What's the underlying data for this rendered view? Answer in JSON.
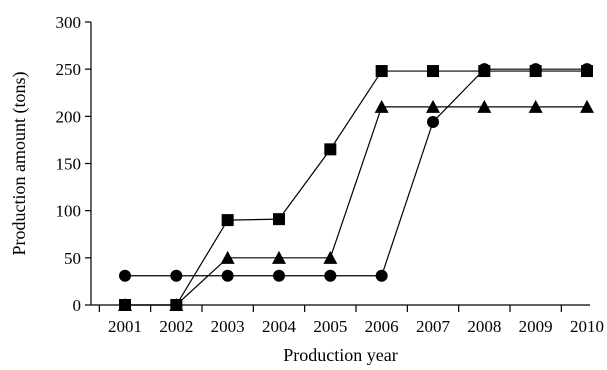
{
  "chart_data": {
    "type": "line",
    "title": "",
    "xlabel": "Production year",
    "ylabel": "Production amount (tons)",
    "categories": [
      "2001",
      "2002",
      "2003",
      "2004",
      "2005",
      "2006",
      "2007",
      "2008",
      "2009",
      "2010"
    ],
    "ylim": [
      0,
      300
    ],
    "yticks": [
      0,
      50,
      100,
      150,
      200,
      250,
      300
    ],
    "grid": false,
    "legend": "none",
    "series": [
      {
        "marker": "square",
        "values": [
          0,
          0,
          90,
          91,
          165,
          248,
          248,
          248,
          248,
          248
        ]
      },
      {
        "marker": "triangle",
        "values": [
          0,
          0,
          50,
          50,
          50,
          210,
          210,
          210,
          210,
          210
        ]
      },
      {
        "marker": "circle",
        "values": [
          31,
          31,
          31,
          31,
          31,
          31,
          194,
          250,
          250,
          250
        ]
      }
    ]
  }
}
